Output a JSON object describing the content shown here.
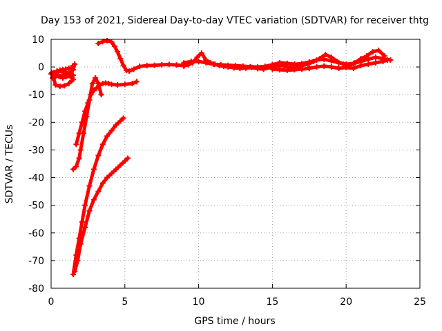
{
  "chart_data": {
    "type": "scatter",
    "title": "Day 153 of 2021, Sidereal Day-to-day VTEC variation (SDTVAR) for receiver thtg",
    "xlabel": "GPS time / hours",
    "ylabel": "SDTVAR / TECUs",
    "xlim": [
      0,
      25
    ],
    "ylim": [
      -80,
      10
    ],
    "x_ticks": [
      0,
      5,
      10,
      15,
      20,
      25
    ],
    "y_ticks": [
      -80,
      -70,
      -60,
      -50,
      -40,
      -30,
      -20,
      -10,
      0,
      10
    ],
    "grid": true,
    "legend": "none",
    "marker_color": "#ff0000",
    "series": [
      {
        "x": [
          0.0,
          0.2,
          0.4,
          0.6,
          0.8,
          1.0,
          1.2,
          1.4,
          1.5,
          1.6,
          1.5,
          1.2,
          1.0,
          0.8,
          0.6,
          0.4,
          0.2,
          0.05,
          0.3,
          0.6,
          0.9,
          1.2,
          1.4,
          1.5,
          1.4,
          1.1,
          0.8,
          0.5,
          0.3,
          0.1,
          0.4,
          0.8,
          1.2,
          1.5
        ],
        "y": [
          -2.5,
          -2.0,
          -1.5,
          -1.2,
          -1.0,
          -0.8,
          -0.5,
          -0.3,
          0.5,
          1.0,
          -1.0,
          -2.5,
          -3.5,
          -4.0,
          -3.5,
          -2.8,
          -2.2,
          -2.0,
          -6.5,
          -7.0,
          -6.8,
          -6.0,
          -5.0,
          -4.5,
          -3.8,
          -3.2,
          -3.0,
          -3.2,
          -3.5,
          -4.0,
          -1.5,
          -1.8,
          -2.2,
          -3.0
        ]
      },
      {
        "x": [
          1.7,
          1.9,
          2.1,
          2.3,
          2.5,
          2.7,
          2.9,
          3.1,
          3.3,
          3.5,
          3.7,
          3.9,
          4.1,
          4.5,
          5.0,
          5.5,
          5.8
        ],
        "y": [
          -28,
          -24,
          -20,
          -16,
          -13,
          -10,
          -8.5,
          -7.5,
          -6.5,
          -6.0,
          -5.8,
          -6.0,
          -6.3,
          -6.5,
          -6.3,
          -6.0,
          -5.3
        ]
      },
      {
        "x": [
          1.5,
          1.7,
          1.9,
          2.0,
          2.2,
          2.4,
          2.6,
          2.8,
          3.0,
          3.2,
          3.4
        ],
        "y": [
          -37,
          -36,
          -33,
          -30,
          -24,
          -18,
          -12,
          -6,
          -4,
          -6,
          -10
        ]
      },
      {
        "x": [
          1.5,
          1.7,
          1.9,
          2.1,
          2.3,
          2.6,
          2.9,
          3.2,
          3.5,
          3.8,
          4.1,
          4.4,
          4.7,
          4.9
        ],
        "y": [
          -75,
          -68,
          -62,
          -56,
          -50,
          -43,
          -37,
          -32,
          -28,
          -25,
          -23,
          -21,
          -19.5,
          -18.5
        ]
      },
      {
        "x": [
          1.6,
          1.8,
          2.0,
          2.3,
          2.6,
          2.9,
          3.2,
          3.5,
          3.8,
          4.1,
          4.4,
          4.7,
          5.0,
          5.2
        ],
        "y": [
          -74,
          -70,
          -64,
          -58,
          -52,
          -48,
          -45,
          -42,
          -40,
          -38.5,
          -37,
          -35.5,
          -34,
          -33
        ]
      },
      {
        "x": [
          3.2,
          3.5,
          3.8,
          4.1,
          4.3,
          4.5,
          4.7,
          4.9,
          5.1,
          5.3,
          5.6,
          6.0,
          6.5,
          7.0,
          7.5,
          8.0,
          8.5,
          9.0
        ],
        "y": [
          8.5,
          9.2,
          9.5,
          9.0,
          7.5,
          5.5,
          3.0,
          0.5,
          -1.2,
          -1.5,
          -0.8,
          0.2,
          0.5,
          0.6,
          0.8,
          0.9,
          0.7,
          0.5
        ]
      },
      {
        "x": [
          9.0,
          9.5,
          10.0,
          10.5,
          11.0,
          11.5,
          12.0,
          12.5,
          13.0,
          13.5,
          14.0,
          14.5,
          15.0,
          15.5,
          16.0,
          16.5,
          17.0,
          17.5,
          18.0,
          18.5,
          19.0,
          19.5,
          20.0,
          20.5,
          21.0,
          21.5,
          22.0,
          22.5,
          23.0
        ],
        "y": [
          1.5,
          2.0,
          2.0,
          1.5,
          1.0,
          0.8,
          0.6,
          0.5,
          0.3,
          0.1,
          0.0,
          0.2,
          0.8,
          1.5,
          1.3,
          1.0,
          1.2,
          1.8,
          2.5,
          2.8,
          2.2,
          1.5,
          1.0,
          1.3,
          2.0,
          2.8,
          3.5,
          3.0,
          2.5
        ]
      },
      {
        "x": [
          9.0,
          9.3,
          9.6,
          9.9,
          10.2,
          10.5,
          10.8,
          11.1,
          11.4,
          11.7,
          12.0,
          12.4,
          12.8,
          13.2,
          13.6,
          14.0,
          14.4,
          15.0,
          15.4,
          15.8,
          16.2,
          16.6,
          17.0,
          17.4,
          17.8,
          18.2,
          18.6,
          19.0,
          19.4,
          19.8,
          20.2,
          20.6,
          21.0,
          21.4,
          21.8,
          22.2,
          22.6
        ],
        "y": [
          0.3,
          0.8,
          1.5,
          3.5,
          5.0,
          2.5,
          1.5,
          1.0,
          0.5,
          0.2,
          0.0,
          -0.3,
          -0.5,
          -0.4,
          -0.2,
          -0.6,
          -0.8,
          0.0,
          0.5,
          0.3,
          -0.2,
          0.0,
          0.5,
          1.0,
          2.0,
          3.0,
          4.5,
          3.5,
          2.0,
          1.0,
          0.5,
          1.5,
          3.0,
          4.0,
          5.5,
          6.0,
          4.0
        ]
      },
      {
        "x": [
          15.0,
          15.5,
          16.0,
          16.5,
          17.0,
          17.5,
          18.0,
          18.5,
          19.0,
          19.5,
          20.0,
          20.5,
          21.0,
          21.5,
          22.0,
          22.5,
          22.8
        ],
        "y": [
          -0.8,
          -1.0,
          -1.2,
          -1.0,
          -0.8,
          -0.5,
          0.0,
          0.3,
          0.0,
          -0.5,
          -0.2,
          -0.5,
          0.5,
          1.0,
          1.5,
          2.0,
          2.5
        ]
      }
    ]
  }
}
